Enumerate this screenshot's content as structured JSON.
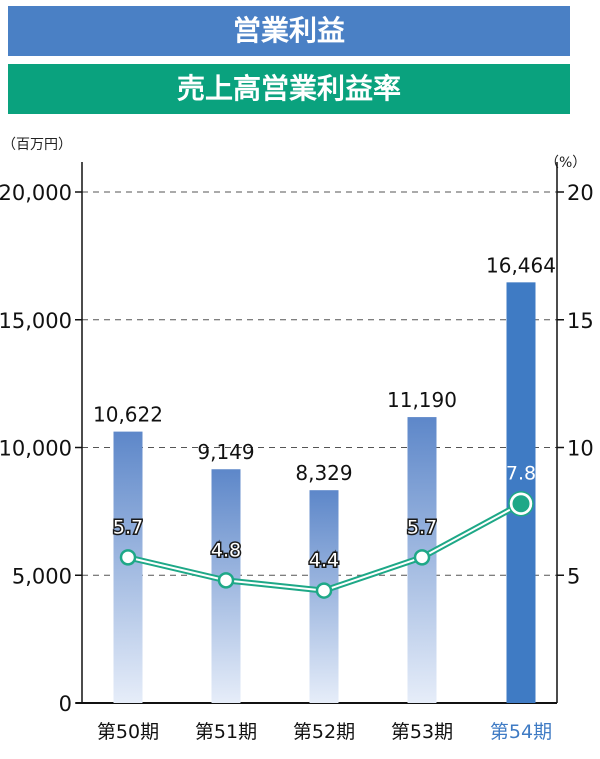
{
  "header": {
    "title_primary": "営業利益",
    "title_secondary": "売上高営業利益率"
  },
  "colors": {
    "blue_banner": "#4a80c5",
    "green_banner": "#0aa27e",
    "bar_top": "#5d87c9",
    "bar_bottom": "#e3ebf8",
    "bar_highlight": "#3f7bc4",
    "line": "#1ea887",
    "highlight_label": "#3f7bc4"
  },
  "chart_data": {
    "type": "bar",
    "categories": [
      "第50期",
      "第51期",
      "第52期",
      "第53期",
      "第54期"
    ],
    "highlight_index": 4,
    "left_axis": {
      "unit_label": "（百万円）",
      "ylim": [
        0,
        20000
      ],
      "ticks": [
        0,
        5000,
        10000,
        15000,
        20000
      ],
      "tick_labels": [
        "0",
        "5,000",
        "10,000",
        "15,000",
        "20,000"
      ]
    },
    "right_axis": {
      "unit_label": "（%）",
      "ylim": [
        0,
        20
      ],
      "ticks": [
        5,
        10,
        15,
        20
      ],
      "tick_labels": [
        "5",
        "10",
        "15",
        "20"
      ]
    },
    "series": [
      {
        "type": "bar",
        "axis": "left",
        "values": [
          10622,
          9149,
          8329,
          11190,
          16464
        ],
        "labels": [
          "10,622",
          "9,149",
          "8,329",
          "11,190",
          "16,464"
        ]
      },
      {
        "type": "line",
        "axis": "right",
        "values": [
          5.7,
          4.8,
          4.4,
          5.7,
          7.8
        ],
        "labels": [
          "5.7",
          "4.8",
          "4.4",
          "5.7",
          "7.8"
        ]
      }
    ],
    "grid": true
  }
}
